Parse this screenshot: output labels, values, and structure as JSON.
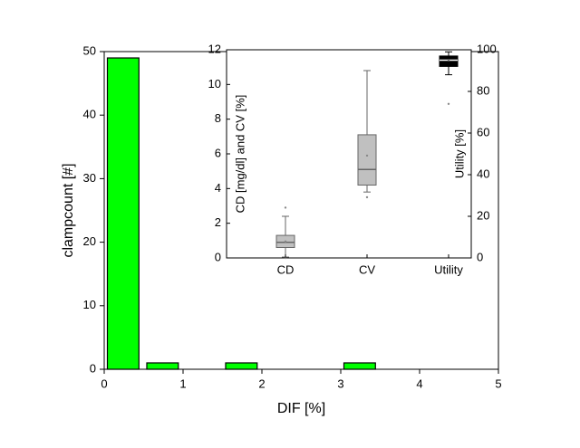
{
  "chart_data": [
    {
      "type": "histogram",
      "xlabel": "DIF [%]",
      "ylabel": "clampcount [#]",
      "bins": [
        0,
        0.5,
        1,
        1.5,
        2,
        2.5,
        3,
        3.5
      ],
      "values": [
        49,
        1,
        0,
        1,
        0,
        0,
        1
      ],
      "color": "#00ff00",
      "xlim": [
        0,
        5
      ],
      "xticks": [
        0,
        1,
        2,
        3,
        4,
        5
      ],
      "ylim": [
        0,
        50
      ],
      "yticks": [
        0,
        10,
        20,
        30,
        40,
        50
      ]
    },
    {
      "type": "box",
      "ylabel": "CD [mg/dl] and CV [%]",
      "y2label": "Utility [%]",
      "categories": [
        "CD",
        "CV",
        "Utility"
      ],
      "series": [
        {
          "name": "CD",
          "color": "#c0c0c0",
          "min": 0.05,
          "q1": 0.6,
          "median": 0.9,
          "q3": 1.3,
          "max": 2.4,
          "mean": 0.95,
          "outliers": [
            2.9,
            0.0
          ]
        },
        {
          "name": "CV",
          "color": "#c0c0c0",
          "min": 3.8,
          "q1": 4.2,
          "median": 5.1,
          "q3": 7.1,
          "max": 10.8,
          "mean": 5.9,
          "outliers": [
            3.5
          ]
        },
        {
          "name": "Utility",
          "color": "#000000",
          "axis": "y2",
          "min": 88,
          "q1": 92,
          "median": 95,
          "q3": 97,
          "max": 99,
          "mean": 95,
          "outliers": [
            74
          ]
        }
      ],
      "ylim": [
        0,
        12
      ],
      "yticks": [
        0,
        2,
        4,
        6,
        8,
        10,
        12
      ],
      "y2lim": [
        0,
        100
      ],
      "y2ticks": [
        0,
        20,
        40,
        60,
        80,
        100
      ]
    }
  ]
}
